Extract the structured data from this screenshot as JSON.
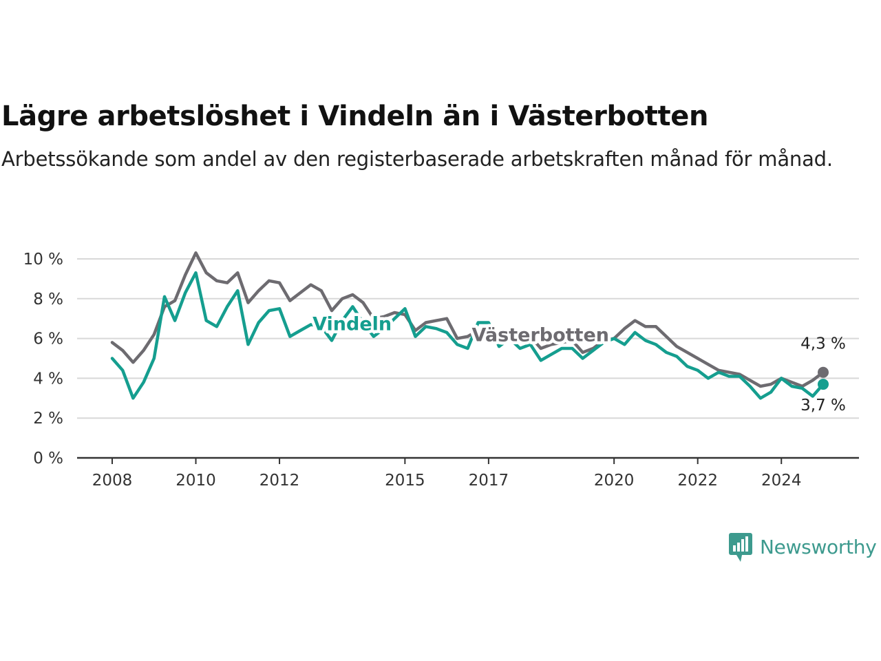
{
  "title": "Lägre arbetslöshet i Vindeln än i Västerbotten",
  "subtitle": "Arbetssökande som andel av den registerbaserade arbetskraften månad för månad.",
  "brand": {
    "name": "Newsworthy",
    "icon": "newsworthy-logo-icon",
    "color": "#3d9a8e"
  },
  "chart_data": {
    "type": "line",
    "title": "Lägre arbetslöshet i Vindeln än i Västerbotten",
    "subtitle": "Arbetssökande som andel av den registerbaserade arbetskraften månad för månad.",
    "ylim": [
      0,
      10
    ],
    "grid": true,
    "y_ticks": [
      {
        "value": 0,
        "label": "0 %"
      },
      {
        "value": 2,
        "label": "2 %"
      },
      {
        "value": 4,
        "label": "4 %"
      },
      {
        "value": 6,
        "label": "6 %"
      },
      {
        "value": 8,
        "label": "8 %"
      },
      {
        "value": 10,
        "label": "10 %"
      }
    ],
    "x_ticks": [
      "2008",
      "2010",
      "2012",
      "2015",
      "2017",
      "2020",
      "2022",
      "2024"
    ],
    "series": [
      {
        "name": "Västerbotten",
        "color": "#6d6b70",
        "end_label": "4,3 %",
        "points": [
          [
            "2008-01",
            5.8
          ],
          [
            "2008-04",
            5.4
          ],
          [
            "2008-07",
            4.8
          ],
          [
            "2008-10",
            5.4
          ],
          [
            "2009-01",
            6.2
          ],
          [
            "2009-04",
            7.6
          ],
          [
            "2009-07",
            7.9
          ],
          [
            "2009-10",
            9.2
          ],
          [
            "2010-01",
            10.3
          ],
          [
            "2010-04",
            9.3
          ],
          [
            "2010-07",
            8.9
          ],
          [
            "2010-10",
            8.8
          ],
          [
            "2011-01",
            9.3
          ],
          [
            "2011-04",
            7.8
          ],
          [
            "2011-07",
            8.4
          ],
          [
            "2011-10",
            8.9
          ],
          [
            "2012-01",
            8.8
          ],
          [
            "2012-04",
            7.9
          ],
          [
            "2012-07",
            8.3
          ],
          [
            "2012-10",
            8.7
          ],
          [
            "2013-01",
            8.4
          ],
          [
            "2013-04",
            7.4
          ],
          [
            "2013-07",
            8.0
          ],
          [
            "2013-10",
            8.2
          ],
          [
            "2014-01",
            7.8
          ],
          [
            "2014-04",
            7.0
          ],
          [
            "2014-07",
            7.1
          ],
          [
            "2014-10",
            7.3
          ],
          [
            "2015-01",
            7.2
          ],
          [
            "2015-04",
            6.4
          ],
          [
            "2015-07",
            6.8
          ],
          [
            "2015-10",
            6.9
          ],
          [
            "2016-01",
            7.0
          ],
          [
            "2016-04",
            6.0
          ],
          [
            "2016-07",
            6.1
          ],
          [
            "2016-10",
            6.4
          ],
          [
            "2017-01",
            6.6
          ],
          [
            "2017-04",
            5.8
          ],
          [
            "2017-07",
            6.0
          ],
          [
            "2017-10",
            6.2
          ],
          [
            "2018-01",
            6.1
          ],
          [
            "2018-04",
            5.5
          ],
          [
            "2018-07",
            5.7
          ],
          [
            "2018-10",
            5.8
          ],
          [
            "2019-01",
            5.9
          ],
          [
            "2019-04",
            5.3
          ],
          [
            "2019-07",
            5.5
          ],
          [
            "2019-10",
            5.9
          ],
          [
            "2020-01",
            6.0
          ],
          [
            "2020-04",
            6.5
          ],
          [
            "2020-07",
            6.9
          ],
          [
            "2020-10",
            6.6
          ],
          [
            "2021-01",
            6.6
          ],
          [
            "2021-04",
            6.1
          ],
          [
            "2021-07",
            5.6
          ],
          [
            "2021-10",
            5.3
          ],
          [
            "2022-01",
            5.0
          ],
          [
            "2022-04",
            4.7
          ],
          [
            "2022-07",
            4.4
          ],
          [
            "2022-10",
            4.3
          ],
          [
            "2023-01",
            4.2
          ],
          [
            "2023-04",
            3.9
          ],
          [
            "2023-07",
            3.6
          ],
          [
            "2023-10",
            3.7
          ],
          [
            "2024-01",
            4.0
          ],
          [
            "2024-04",
            3.8
          ],
          [
            "2024-07",
            3.6
          ],
          [
            "2024-10",
            3.9
          ],
          [
            "2025-01",
            4.3
          ]
        ]
      },
      {
        "name": "Vindeln",
        "color": "#159e8f",
        "end_label": "3,7 %",
        "points": [
          [
            "2008-01",
            5.0
          ],
          [
            "2008-04",
            4.4
          ],
          [
            "2008-07",
            3.0
          ],
          [
            "2008-10",
            3.8
          ],
          [
            "2009-01",
            5.0
          ],
          [
            "2009-04",
            8.1
          ],
          [
            "2009-07",
            6.9
          ],
          [
            "2009-10",
            8.3
          ],
          [
            "2010-01",
            9.3
          ],
          [
            "2010-04",
            6.9
          ],
          [
            "2010-07",
            6.6
          ],
          [
            "2010-10",
            7.6
          ],
          [
            "2011-01",
            8.4
          ],
          [
            "2011-04",
            5.7
          ],
          [
            "2011-07",
            6.8
          ],
          [
            "2011-10",
            7.4
          ],
          [
            "2012-01",
            7.5
          ],
          [
            "2012-04",
            6.1
          ],
          [
            "2012-07",
            6.4
          ],
          [
            "2012-10",
            6.7
          ],
          [
            "2013-01",
            6.6
          ],
          [
            "2013-04",
            5.9
          ],
          [
            "2013-07",
            6.9
          ],
          [
            "2013-10",
            7.6
          ],
          [
            "2014-01",
            6.8
          ],
          [
            "2014-04",
            6.1
          ],
          [
            "2014-07",
            6.5
          ],
          [
            "2014-10",
            7.0
          ],
          [
            "2015-01",
            7.5
          ],
          [
            "2015-04",
            6.1
          ],
          [
            "2015-07",
            6.6
          ],
          [
            "2015-10",
            6.5
          ],
          [
            "2016-01",
            6.3
          ],
          [
            "2016-04",
            5.7
          ],
          [
            "2016-07",
            5.5
          ],
          [
            "2016-10",
            6.8
          ],
          [
            "2017-01",
            6.8
          ],
          [
            "2017-04",
            5.6
          ],
          [
            "2017-07",
            6.0
          ],
          [
            "2017-10",
            5.5
          ],
          [
            "2018-01",
            5.7
          ],
          [
            "2018-04",
            4.9
          ],
          [
            "2018-07",
            5.2
          ],
          [
            "2018-10",
            5.5
          ],
          [
            "2019-01",
            5.5
          ],
          [
            "2019-04",
            5.0
          ],
          [
            "2019-07",
            5.4
          ],
          [
            "2019-10",
            5.8
          ],
          [
            "2020-01",
            6.0
          ],
          [
            "2020-04",
            5.7
          ],
          [
            "2020-07",
            6.3
          ],
          [
            "2020-10",
            5.9
          ],
          [
            "2021-01",
            5.7
          ],
          [
            "2021-04",
            5.3
          ],
          [
            "2021-07",
            5.1
          ],
          [
            "2021-10",
            4.6
          ],
          [
            "2022-01",
            4.4
          ],
          [
            "2022-04",
            4.0
          ],
          [
            "2022-07",
            4.3
          ],
          [
            "2022-10",
            4.1
          ],
          [
            "2023-01",
            4.1
          ],
          [
            "2023-04",
            3.6
          ],
          [
            "2023-07",
            3.0
          ],
          [
            "2023-10",
            3.3
          ],
          [
            "2024-01",
            4.0
          ],
          [
            "2024-04",
            3.6
          ],
          [
            "2024-07",
            3.5
          ],
          [
            "2024-10",
            3.1
          ],
          [
            "2025-01",
            3.7
          ]
        ]
      }
    ]
  }
}
